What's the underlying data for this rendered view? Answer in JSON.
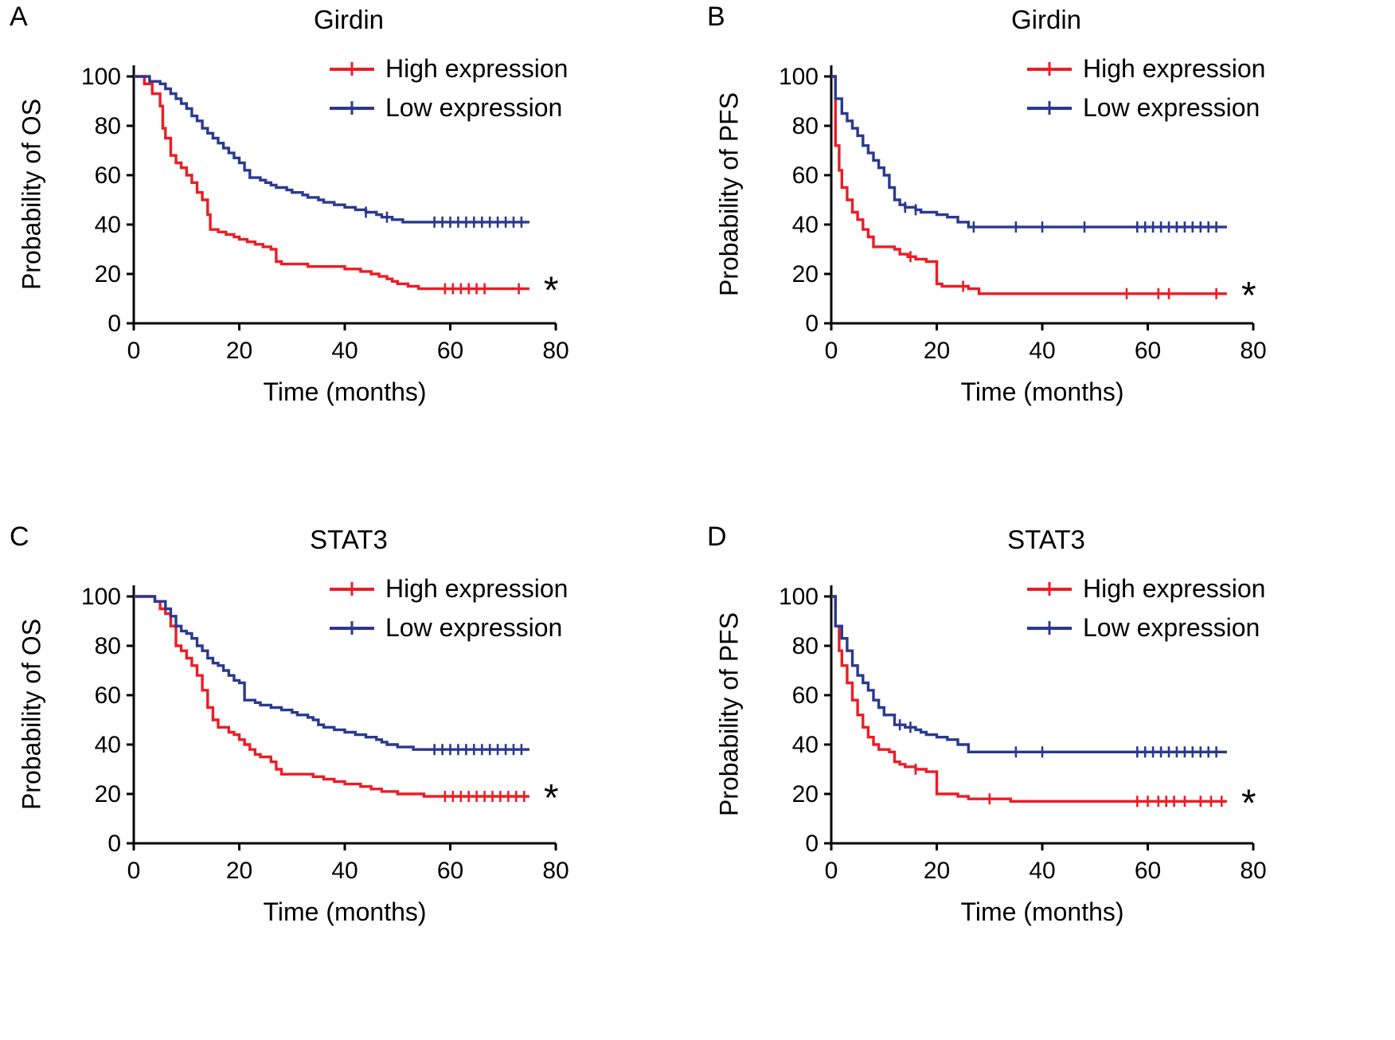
{
  "chart_data": [
    {
      "type": "line",
      "subtype": "kaplan-meier-step",
      "label": "A",
      "title": "Girdin",
      "xlabel": "Time (months)",
      "ylabel": "Probability of OS",
      "xlim": [
        0,
        80
      ],
      "ylim": [
        0,
        105
      ],
      "xticks": [
        0,
        20,
        40,
        60,
        80
      ],
      "yticks": [
        0,
        20,
        40,
        60,
        80,
        100
      ],
      "annotation": "*",
      "legend_position": "inside-top-right",
      "series": [
        {
          "name": "High expression",
          "color": "#ed1c24",
          "steps": [
            [
              0,
              100
            ],
            [
              2,
              97
            ],
            [
              3.5,
              93
            ],
            [
              5,
              88
            ],
            [
              5.5,
              79
            ],
            [
              6,
              75
            ],
            [
              7,
              68
            ],
            [
              8,
              65
            ],
            [
              9,
              63
            ],
            [
              10,
              60
            ],
            [
              11,
              57
            ],
            [
              12,
              53
            ],
            [
              13,
              50
            ],
            [
              14,
              44
            ],
            [
              14.5,
              38
            ],
            [
              16,
              37
            ],
            [
              17.5,
              36
            ],
            [
              19,
              35
            ],
            [
              20,
              34
            ],
            [
              21.5,
              33
            ],
            [
              23,
              32
            ],
            [
              24.5,
              31
            ],
            [
              26,
              30
            ],
            [
              27,
              25
            ],
            [
              28,
              24
            ],
            [
              33,
              23
            ],
            [
              40,
              22
            ],
            [
              43,
              21
            ],
            [
              45,
              20
            ],
            [
              46.5,
              19
            ],
            [
              48,
              18
            ],
            [
              49,
              17
            ],
            [
              50,
              16
            ],
            [
              52,
              15
            ],
            [
              54,
              14
            ],
            [
              75,
              14
            ]
          ],
          "censors": [
            59,
            60.5,
            62,
            63.5,
            65,
            66.5,
            73
          ]
        },
        {
          "name": "Low expression",
          "color": "#2a3990",
          "steps": [
            [
              0,
              100
            ],
            [
              3,
              98
            ],
            [
              5,
              97
            ],
            [
              6,
              95
            ],
            [
              7,
              93
            ],
            [
              8,
              91
            ],
            [
              9,
              89
            ],
            [
              10,
              87
            ],
            [
              11,
              84
            ],
            [
              12,
              82
            ],
            [
              13,
              79
            ],
            [
              14,
              77
            ],
            [
              15,
              75
            ],
            [
              16,
              73
            ],
            [
              17,
              71
            ],
            [
              18,
              69
            ],
            [
              19,
              67
            ],
            [
              20,
              65
            ],
            [
              21,
              62
            ],
            [
              22,
              59
            ],
            [
              24,
              58
            ],
            [
              25,
              57
            ],
            [
              26,
              56
            ],
            [
              27,
              55
            ],
            [
              29,
              54
            ],
            [
              30,
              53
            ],
            [
              32,
              52
            ],
            [
              33,
              51
            ],
            [
              35,
              50
            ],
            [
              36,
              49
            ],
            [
              38,
              48
            ],
            [
              40,
              47
            ],
            [
              42,
              46
            ],
            [
              44,
              45
            ],
            [
              46,
              44
            ],
            [
              47,
              43
            ],
            [
              49,
              42
            ],
            [
              51,
              41
            ],
            [
              75,
              41
            ]
          ],
          "censors": [
            44,
            48,
            57,
            58.5,
            60,
            61.5,
            63,
            64.5,
            66,
            67.5,
            69,
            70.5,
            72,
            73.5
          ]
        }
      ]
    },
    {
      "type": "line",
      "subtype": "kaplan-meier-step",
      "label": "B",
      "title": "Girdin",
      "xlabel": "Time (months)",
      "ylabel": "Probability of PFS",
      "xlim": [
        0,
        80
      ],
      "ylim": [
        0,
        105
      ],
      "xticks": [
        0,
        20,
        40,
        60,
        80
      ],
      "yticks": [
        0,
        20,
        40,
        60,
        80,
        100
      ],
      "annotation": "*",
      "legend_position": "inside-top-right",
      "series": [
        {
          "name": "High expression",
          "color": "#ed1c24",
          "steps": [
            [
              0,
              100
            ],
            [
              0.8,
              72
            ],
            [
              1.5,
              62
            ],
            [
              2,
              55
            ],
            [
              3,
              50
            ],
            [
              4,
              45
            ],
            [
              5,
              42
            ],
            [
              6,
              38
            ],
            [
              7,
              35
            ],
            [
              8,
              31
            ],
            [
              12,
              30
            ],
            [
              13,
              28
            ],
            [
              14.5,
              27
            ],
            [
              16,
              26
            ],
            [
              18,
              25
            ],
            [
              20,
              16
            ],
            [
              21,
              15
            ],
            [
              26,
              14
            ],
            [
              28,
              12
            ],
            [
              75,
              12
            ]
          ],
          "censors": [
            15,
            25,
            56,
            62,
            64,
            73
          ]
        },
        {
          "name": "Low expression",
          "color": "#2a3990",
          "steps": [
            [
              0,
              100
            ],
            [
              0.8,
              91
            ],
            [
              2,
              85
            ],
            [
              3,
              82
            ],
            [
              4,
              79
            ],
            [
              5,
              76
            ],
            [
              6,
              72
            ],
            [
              7,
              69
            ],
            [
              8,
              66
            ],
            [
              9,
              63
            ],
            [
              10,
              60
            ],
            [
              11,
              55
            ],
            [
              12,
              50
            ],
            [
              13,
              48
            ],
            [
              14,
              47
            ],
            [
              16,
              46
            ],
            [
              17,
              45
            ],
            [
              20,
              44
            ],
            [
              22,
              43
            ],
            [
              24,
              41
            ],
            [
              26,
              39
            ],
            [
              75,
              39
            ]
          ],
          "censors": [
            14,
            16,
            27,
            35,
            40,
            48,
            58,
            59.5,
            61,
            62.5,
            64,
            65.5,
            67,
            68.5,
            70,
            71.5,
            73
          ]
        }
      ]
    },
    {
      "type": "line",
      "subtype": "kaplan-meier-step",
      "label": "C",
      "title": "STAT3",
      "xlabel": "Time (months)",
      "ylabel": "Probability of OS",
      "xlim": [
        0,
        80
      ],
      "ylim": [
        0,
        105
      ],
      "xticks": [
        0,
        20,
        40,
        60,
        80
      ],
      "yticks": [
        0,
        20,
        40,
        60,
        80,
        100
      ],
      "annotation": "*",
      "legend_position": "inside-top-right",
      "series": [
        {
          "name": "High expression",
          "color": "#ed1c24",
          "steps": [
            [
              0,
              100
            ],
            [
              4,
              98
            ],
            [
              5,
              95
            ],
            [
              6,
              93
            ],
            [
              7,
              88
            ],
            [
              8,
              80
            ],
            [
              9,
              78
            ],
            [
              10,
              75
            ],
            [
              11,
              72
            ],
            [
              12,
              68
            ],
            [
              13,
              62
            ],
            [
              14,
              55
            ],
            [
              15,
              50
            ],
            [
              16,
              47
            ],
            [
              18,
              45
            ],
            [
              19,
              44
            ],
            [
              20,
              42
            ],
            [
              21,
              40
            ],
            [
              22,
              38
            ],
            [
              23,
              36
            ],
            [
              24,
              35
            ],
            [
              26,
              33
            ],
            [
              27,
              30
            ],
            [
              28,
              28
            ],
            [
              34,
              27
            ],
            [
              36,
              26
            ],
            [
              38,
              25
            ],
            [
              40,
              24
            ],
            [
              43,
              23
            ],
            [
              45,
              22
            ],
            [
              47,
              21
            ],
            [
              50,
              20
            ],
            [
              55,
              19
            ],
            [
              75,
              19
            ]
          ],
          "censors": [
            59,
            60.5,
            62,
            63.5,
            65,
            66.5,
            68,
            69.5,
            71,
            72.5,
            74
          ]
        },
        {
          "name": "Low expression",
          "color": "#2a3990",
          "steps": [
            [
              0,
              100
            ],
            [
              4,
              98
            ],
            [
              6,
              95
            ],
            [
              7,
              92
            ],
            [
              8,
              88
            ],
            [
              9,
              86
            ],
            [
              10,
              85
            ],
            [
              11,
              83
            ],
            [
              12,
              80
            ],
            [
              13,
              78
            ],
            [
              14,
              75
            ],
            [
              15,
              73
            ],
            [
              16,
              72
            ],
            [
              17,
              70
            ],
            [
              18,
              68
            ],
            [
              19,
              66
            ],
            [
              20,
              65
            ],
            [
              21,
              58
            ],
            [
              23,
              57
            ],
            [
              24,
              56
            ],
            [
              26,
              55
            ],
            [
              28,
              54
            ],
            [
              30,
              53
            ],
            [
              31,
              52
            ],
            [
              33,
              51
            ],
            [
              34,
              50
            ],
            [
              35,
              48
            ],
            [
              36,
              47
            ],
            [
              38,
              46
            ],
            [
              40,
              45
            ],
            [
              42,
              44
            ],
            [
              44,
              43
            ],
            [
              46,
              42
            ],
            [
              47,
              41
            ],
            [
              48,
              40
            ],
            [
              50,
              39
            ],
            [
              53,
              38
            ],
            [
              75,
              38
            ]
          ],
          "censors": [
            57,
            58.5,
            60,
            61.5,
            63,
            64.5,
            66,
            67.5,
            69,
            70.5,
            72,
            73.5
          ]
        }
      ]
    },
    {
      "type": "line",
      "subtype": "kaplan-meier-step",
      "label": "D",
      "title": "STAT3",
      "xlabel": "Time (months)",
      "ylabel": "Probability of PFS",
      "xlim": [
        0,
        80
      ],
      "ylim": [
        0,
        105
      ],
      "xticks": [
        0,
        20,
        40,
        60,
        80
      ],
      "yticks": [
        0,
        20,
        40,
        60,
        80,
        100
      ],
      "annotation": "*",
      "legend_position": "inside-top-right",
      "series": [
        {
          "name": "High expression",
          "color": "#ed1c24",
          "steps": [
            [
              0,
              100
            ],
            [
              0.8,
              88
            ],
            [
              1.5,
              78
            ],
            [
              2,
              72
            ],
            [
              3,
              65
            ],
            [
              4,
              58
            ],
            [
              5,
              52
            ],
            [
              6,
              47
            ],
            [
              7,
              43
            ],
            [
              8,
              40
            ],
            [
              9,
              38
            ],
            [
              11,
              37
            ],
            [
              12,
              33
            ],
            [
              13,
              32
            ],
            [
              14,
              31
            ],
            [
              16,
              30
            ],
            [
              18,
              29
            ],
            [
              20,
              20
            ],
            [
              24,
              19
            ],
            [
              26,
              18
            ],
            [
              34,
              17
            ],
            [
              75,
              17
            ]
          ],
          "censors": [
            16,
            30,
            58,
            60,
            62,
            63.5,
            65,
            67,
            70,
            72,
            74
          ]
        },
        {
          "name": "Low expression",
          "color": "#2a3990",
          "steps": [
            [
              0,
              100
            ],
            [
              0.8,
              88
            ],
            [
              2,
              83
            ],
            [
              3,
              78
            ],
            [
              4,
              72
            ],
            [
              5,
              68
            ],
            [
              6,
              65
            ],
            [
              7,
              62
            ],
            [
              8,
              58
            ],
            [
              9,
              55
            ],
            [
              10,
              52
            ],
            [
              12,
              48
            ],
            [
              14,
              47
            ],
            [
              16,
              46
            ],
            [
              17,
              45
            ],
            [
              18,
              44
            ],
            [
              20,
              43
            ],
            [
              22,
              42
            ],
            [
              24,
              40
            ],
            [
              26,
              37
            ],
            [
              75,
              37
            ]
          ],
          "censors": [
            13,
            15,
            35,
            40,
            58,
            59.5,
            61,
            62.5,
            64,
            65.5,
            67,
            68.5,
            70,
            71.5,
            73
          ]
        }
      ]
    }
  ]
}
